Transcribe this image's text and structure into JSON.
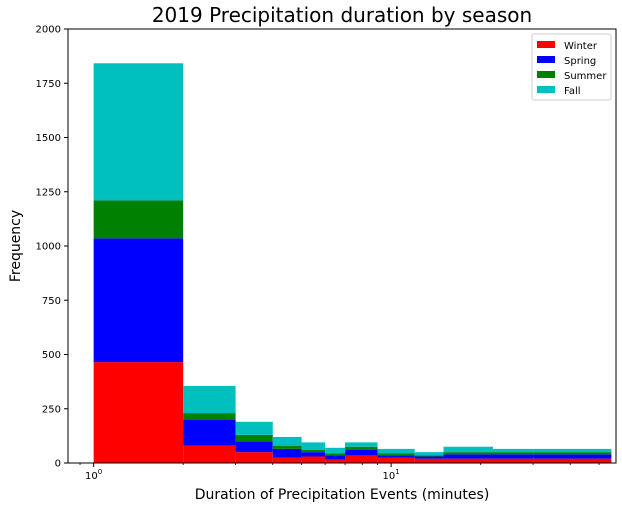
{
  "chart_data": {
    "type": "bar",
    "stacked": true,
    "title": "2019 Precipitation duration by season",
    "xlabel": "Duration of Precipitation Events (minutes)",
    "ylabel": "Frequency",
    "xscale": "log",
    "xlim": [
      0.82,
      57
    ],
    "ylim": [
      0,
      2000
    ],
    "grid": false,
    "legend_position": "top-right",
    "yticks": [
      0,
      250,
      500,
      750,
      1000,
      1250,
      1500,
      1750,
      2000
    ],
    "xticks_major": [
      {
        "value": 1,
        "base": "10",
        "exp": "0"
      },
      {
        "value": 10,
        "base": "10",
        "exp": "1"
      }
    ],
    "bin_edges": [
      1,
      2,
      3,
      4,
      5,
      6,
      7,
      9,
      12,
      15,
      22,
      30,
      55
    ],
    "series": [
      {
        "name": "Winter",
        "color": "#ff0000",
        "values": [
          465,
          80,
          50,
          25,
          30,
          15,
          35,
          25,
          20,
          20,
          20,
          20
        ]
      },
      {
        "name": "Spring",
        "color": "#0000ff",
        "values": [
          570,
          120,
          50,
          40,
          20,
          20,
          25,
          10,
          10,
          20,
          20,
          20
        ]
      },
      {
        "name": "Summer",
        "color": "#008000",
        "values": [
          175,
          30,
          30,
          15,
          10,
          10,
          15,
          10,
          5,
          10,
          10,
          10
        ]
      },
      {
        "name": "Fall",
        "color": "#00bfbf",
        "values": [
          632,
          125,
          60,
          40,
          35,
          25,
          20,
          20,
          15,
          25,
          15,
          15
        ]
      }
    ]
  }
}
